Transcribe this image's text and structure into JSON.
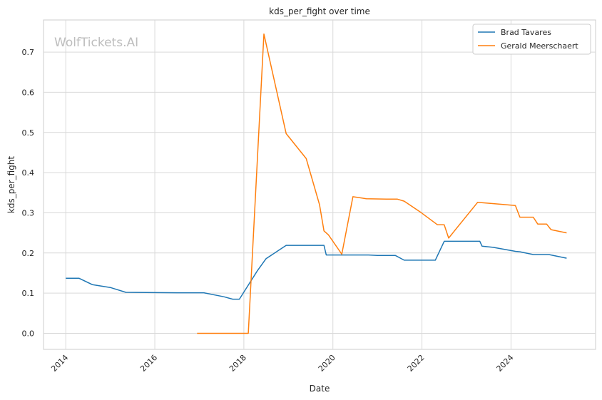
{
  "chart_data": {
    "type": "line",
    "title": "kds_per_fight over time",
    "xlabel": "Date",
    "ylabel": "kds_per_fight",
    "watermark": "WolfTickets.AI",
    "xlim": [
      2013.5,
      2025.9
    ],
    "ylim": [
      -0.04,
      0.78
    ],
    "xticks": [
      2014,
      2016,
      2018,
      2020,
      2022,
      2024
    ],
    "xtick_labels": [
      "2014",
      "2016",
      "2018",
      "2020",
      "2022",
      "2024"
    ],
    "yticks": [
      0.0,
      0.1,
      0.2,
      0.3,
      0.4,
      0.5,
      0.6,
      0.7
    ],
    "ytick_labels": [
      "0.0",
      "0.1",
      "0.2",
      "0.3",
      "0.4",
      "0.5",
      "0.6",
      "0.7"
    ],
    "grid": true,
    "legend_position": "top-right",
    "series": [
      {
        "name": "Brad Tavares",
        "color": "#1f77b4",
        "x": [
          2014.0,
          2014.3,
          2014.6,
          2015.0,
          2015.35,
          2016.5,
          2017.1,
          2017.55,
          2017.75,
          2017.9,
          2018.3,
          2018.5,
          2018.95,
          2019.8,
          2019.85,
          2020.5,
          2020.8,
          2021.0,
          2021.4,
          2021.6,
          2022.3,
          2022.5,
          2023.3,
          2023.35,
          2023.6,
          2024.1,
          2024.2,
          2024.5,
          2024.85,
          2025.25
        ],
        "y": [
          0.137,
          0.137,
          0.121,
          0.114,
          0.102,
          0.101,
          0.101,
          0.091,
          0.085,
          0.085,
          0.155,
          0.186,
          0.219,
          0.219,
          0.195,
          0.195,
          0.195,
          0.194,
          0.194,
          0.182,
          0.182,
          0.229,
          0.229,
          0.217,
          0.214,
          0.204,
          0.203,
          0.196,
          0.196,
          0.187
        ]
      },
      {
        "name": "Gerald Meerschaert",
        "color": "#ff7f0e",
        "x": [
          2016.95,
          2018.1,
          2018.45,
          2018.95,
          2019.4,
          2019.7,
          2019.8,
          2019.9,
          2020.2,
          2020.45,
          2020.75,
          2021.2,
          2021.45,
          2021.6,
          2021.95,
          2022.35,
          2022.5,
          2022.6,
          2023.25,
          2023.8,
          2024.1,
          2024.2,
          2024.5,
          2024.6,
          2024.8,
          2024.9,
          2025.25
        ],
        "y": [
          0.0,
          0.0,
          0.745,
          0.497,
          0.435,
          0.32,
          0.255,
          0.245,
          0.197,
          0.34,
          0.335,
          0.334,
          0.334,
          0.329,
          0.303,
          0.27,
          0.27,
          0.237,
          0.326,
          0.321,
          0.318,
          0.289,
          0.289,
          0.272,
          0.272,
          0.258,
          0.25
        ]
      }
    ]
  }
}
